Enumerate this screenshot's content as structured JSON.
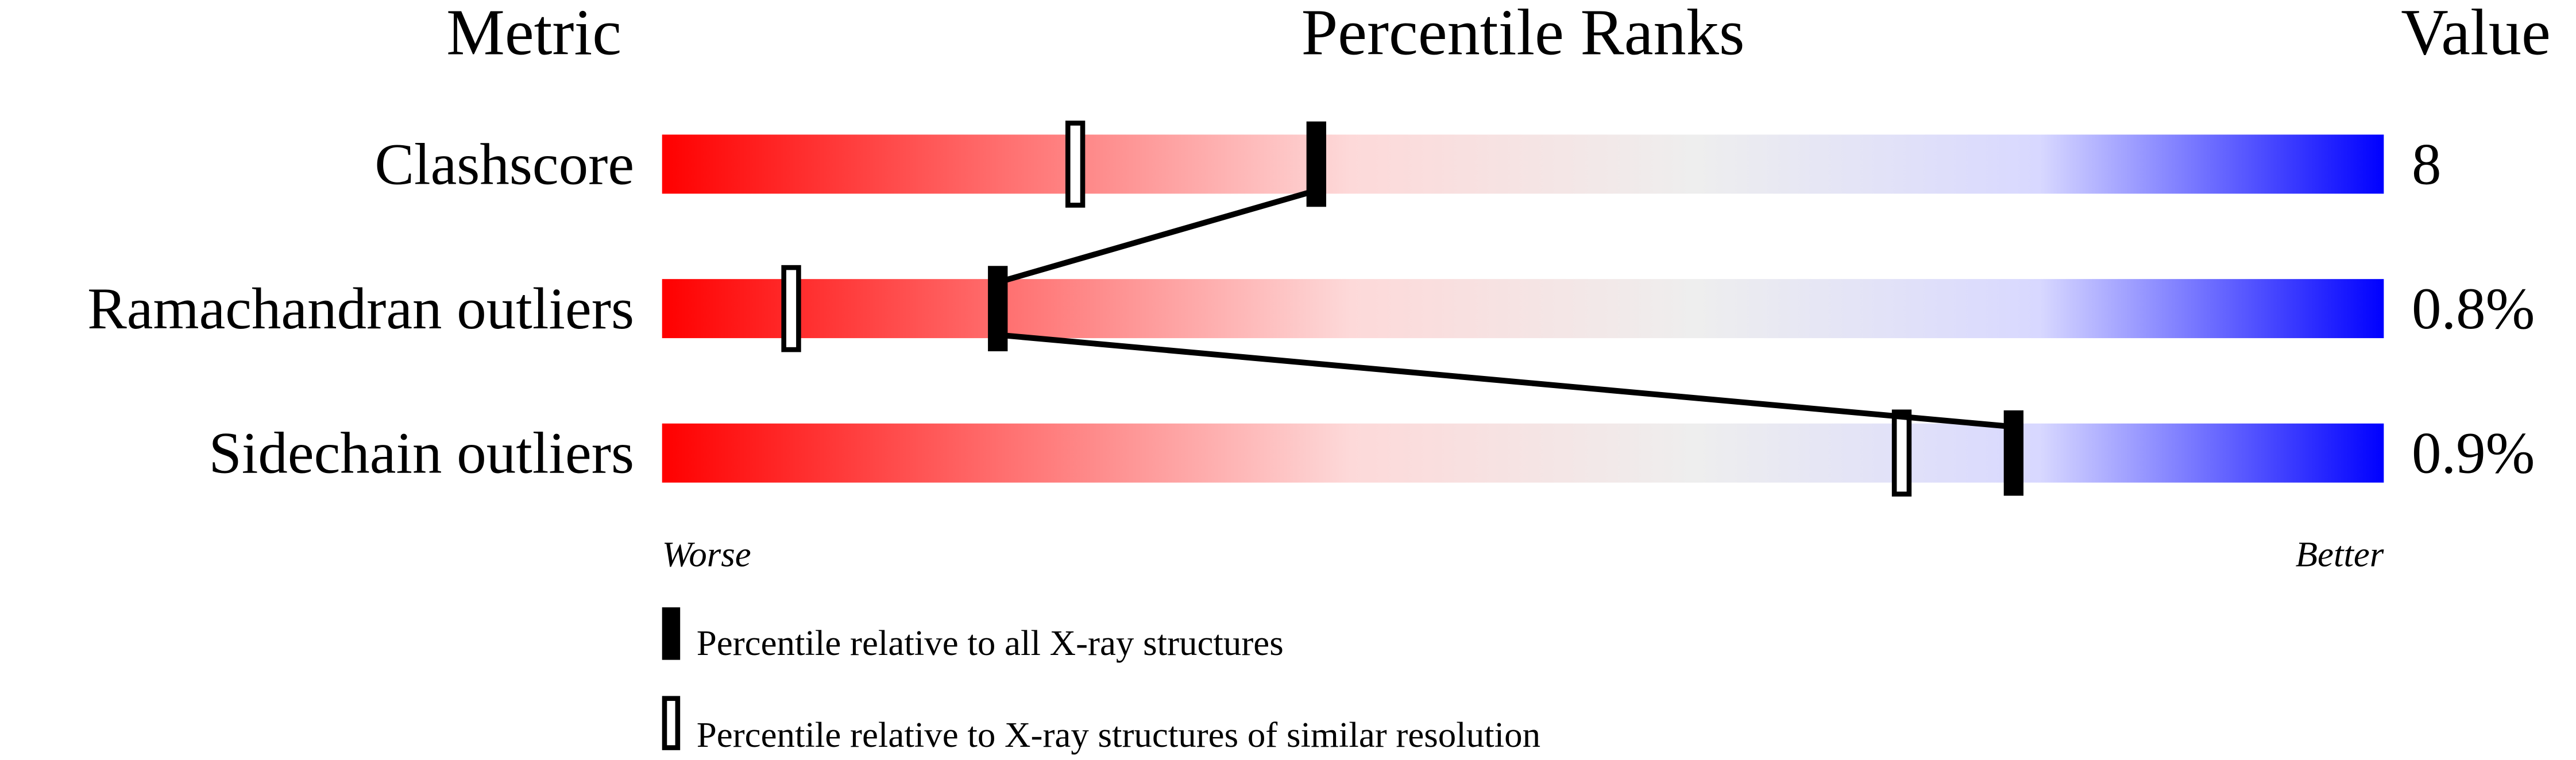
{
  "chart_data": {
    "type": "percentile-bar",
    "headers": {
      "metric": "Metric",
      "ranks": "Percentile Ranks",
      "value": "Value"
    },
    "xlim": [
      0,
      100
    ],
    "scale_labels": {
      "low": "Worse",
      "high": "Better"
    },
    "gradient_colors": [
      "#ff0000",
      "#ff7070",
      "#fdd9d9",
      "#eeeeee",
      "#d8d8ff",
      "#0000ff"
    ],
    "rows": [
      {
        "metric": "Clashscore",
        "value": "8",
        "percentile_all": 38,
        "percentile_similar": 24
      },
      {
        "metric": "Ramachandran outliers",
        "value": "0.8%",
        "percentile_all": 19.5,
        "percentile_similar": 7.5
      },
      {
        "metric": "Sidechain outliers",
        "value": "0.9%",
        "percentile_all": 78.5,
        "percentile_similar": 72
      }
    ],
    "legend": {
      "all": "Percentile relative to all X-ray structures",
      "similar": "Percentile relative to X-ray structures of similar resolution"
    }
  }
}
